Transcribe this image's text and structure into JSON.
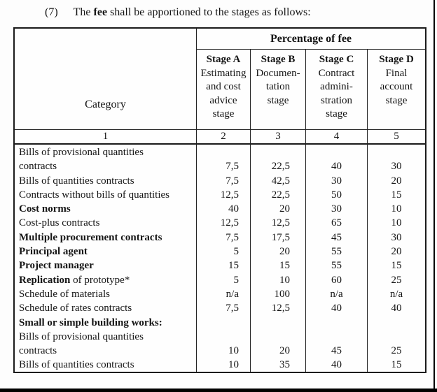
{
  "caption": {
    "number": "(7)",
    "text_pre": "The",
    "text_bold": "fee",
    "text_post": "shall be apportioned to the stages as follows:"
  },
  "table": {
    "category_header": "Category",
    "group_header": "Percentage of fee",
    "stages": [
      {
        "name": "Stage A",
        "desc_lines": [
          "Estimating",
          "and cost",
          "advice",
          "stage"
        ]
      },
      {
        "name": "Stage B",
        "desc_lines": [
          "Documen-",
          "tation",
          "stage"
        ]
      },
      {
        "name": "Stage C",
        "desc_lines": [
          "Contract",
          "admini-",
          "stration",
          "stage"
        ]
      },
      {
        "name": "Stage D",
        "desc_lines": [
          "Final",
          "account",
          "stage"
        ]
      }
    ],
    "column_numbers": [
      "1",
      "2",
      "3",
      "4",
      "5"
    ],
    "rows": [
      {
        "label_bold": "",
        "label_rest": "Bills of provisional quantities",
        "values": [
          "",
          "",
          "",
          ""
        ]
      },
      {
        "label_bold": "",
        "label_rest": "contracts",
        "values": [
          "7,5",
          "22,5",
          "40",
          "30"
        ]
      },
      {
        "label_bold": "",
        "label_rest": "Bills of quantities contracts",
        "values": [
          "7,5",
          "42,5",
          "30",
          "20"
        ]
      },
      {
        "label_bold": "",
        "label_rest": "Contracts without bills of quantities",
        "values": [
          "12,5",
          "22,5",
          "50",
          "15"
        ]
      },
      {
        "label_bold": "Cost norms",
        "label_rest": "",
        "values": [
          "40",
          "20",
          "30",
          "10"
        ]
      },
      {
        "label_bold": "",
        "label_rest": "Cost-plus contracts",
        "values": [
          "12,5",
          "12,5",
          "65",
          "10"
        ]
      },
      {
        "label_bold": "Multiple procurement contracts",
        "label_rest": "",
        "values": [
          "7,5",
          "17,5",
          "45",
          "30"
        ]
      },
      {
        "label_bold": "Principal agent",
        "label_rest": "",
        "values": [
          "5",
          "20",
          "55",
          "20"
        ]
      },
      {
        "label_bold": "Project manager",
        "label_rest": "",
        "values": [
          "15",
          "15",
          "55",
          "15"
        ]
      },
      {
        "label_bold": "Replication",
        "label_rest": " of prototype*",
        "values": [
          "5",
          "10",
          "60",
          "25"
        ]
      },
      {
        "label_bold": "",
        "label_rest": "Schedule of materials",
        "values": [
          "n/a",
          "100",
          "n/a",
          "n/a"
        ]
      },
      {
        "label_bold": "",
        "label_rest": "Schedule of rates contracts",
        "values": [
          "7,5",
          "12,5",
          "40",
          "40"
        ]
      },
      {
        "label_bold": "Small or simple building works:",
        "label_rest": "",
        "values": [
          "",
          "",
          "",
          ""
        ]
      },
      {
        "label_bold": "",
        "label_rest": "Bills of provisional quantities",
        "values": [
          "",
          "",
          "",
          ""
        ]
      },
      {
        "label_bold": "",
        "label_rest": "contracts",
        "values": [
          "10",
          "20",
          "45",
          "25"
        ]
      },
      {
        "label_bold": "",
        "label_rest": "Bills of quantities contracts",
        "values": [
          "10",
          "35",
          "40",
          "15"
        ]
      }
    ]
  }
}
